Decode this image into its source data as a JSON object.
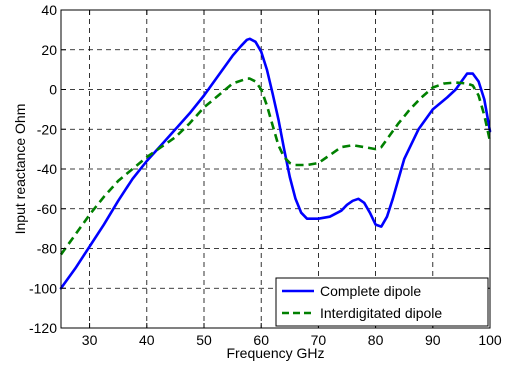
{
  "chart_data": {
    "type": "line",
    "title": "",
    "xlabel": "Frequency GHz",
    "ylabel": "Input reactance Ohm",
    "xlim": [
      25,
      100
    ],
    "ylim": [
      -120,
      40
    ],
    "xticks": [
      30,
      40,
      50,
      60,
      70,
      80,
      90,
      100
    ],
    "yticks": [
      40,
      20,
      0,
      -20,
      -40,
      -60,
      -80,
      -100,
      -120
    ],
    "grid": true,
    "grid_style": "dashed",
    "legend_position": "bottom-right",
    "series": [
      {
        "name": "Complete dipole",
        "color": "#0000ff",
        "line_style": "solid",
        "x": [
          25,
          27.5,
          30,
          32.5,
          35,
          37.5,
          40,
          42.5,
          45,
          47.5,
          50,
          52.5,
          55,
          56.5,
          57.5,
          58,
          59,
          60,
          61,
          62,
          63,
          64,
          65,
          66,
          67,
          68,
          70,
          72,
          74,
          75,
          76,
          77,
          78,
          79,
          80,
          81,
          82,
          83,
          84,
          85,
          87.5,
          90,
          92.5,
          94,
          95,
          96,
          97,
          98,
          99,
          100
        ],
        "values": [
          -100,
          -90,
          -79,
          -68,
          -56,
          -45,
          -36,
          -28,
          -20,
          -12,
          -3,
          7,
          17,
          22,
          25,
          25.5,
          24,
          19,
          10,
          -2,
          -15,
          -30,
          -44,
          -55,
          -62,
          -65,
          -65,
          -64,
          -61,
          -58,
          -56,
          -55,
          -57,
          -62,
          -68,
          -69,
          -64,
          -55,
          -45,
          -35,
          -20,
          -10,
          -4,
          0,
          4,
          8,
          8,
          4,
          -5,
          -21
        ]
      },
      {
        "name": "Interdigitated dipole",
        "color": "#008000",
        "line_style": "dashed",
        "x": [
          25,
          27.5,
          30,
          32.5,
          35,
          37.5,
          40,
          42.5,
          45,
          47.5,
          50,
          52.5,
          55,
          57.5,
          58,
          59,
          60,
          61,
          62,
          63,
          64,
          65,
          66,
          67,
          68,
          70,
          72,
          74,
          76,
          78,
          80,
          81,
          82,
          84,
          86,
          88,
          90,
          92,
          94,
          96,
          97,
          98,
          99,
          100
        ],
        "values": [
          -83,
          -73,
          -63,
          -54,
          -46,
          -40,
          -34,
          -29,
          -24,
          -17,
          -9,
          -3,
          3,
          5.5,
          5.5,
          4,
          0,
          -8,
          -18,
          -28,
          -34,
          -37,
          -38,
          -38,
          -38,
          -37,
          -33,
          -29,
          -28,
          -29,
          -30,
          -29,
          -25,
          -17,
          -10,
          -4,
          1,
          3,
          3.5,
          3,
          2,
          -3,
          -13,
          -26
        ]
      }
    ]
  }
}
